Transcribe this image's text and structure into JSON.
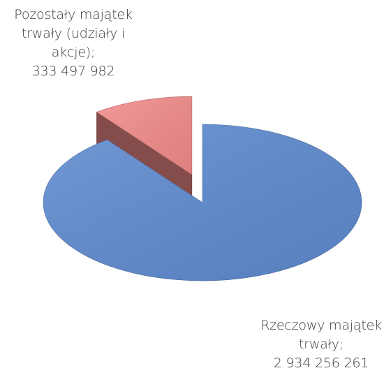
{
  "chart_data": {
    "type": "pie3d",
    "categories": [
      "Pozostały majątek trwały (udziały i akcje);",
      "Rzeczowy majątek trwały;"
    ],
    "values": [
      333497982,
      2934256261
    ],
    "value_labels": [
      "333 497 982",
      "2 934 256 261"
    ],
    "colors": [
      "#f28b8b",
      "#5f8bd0"
    ]
  }
}
